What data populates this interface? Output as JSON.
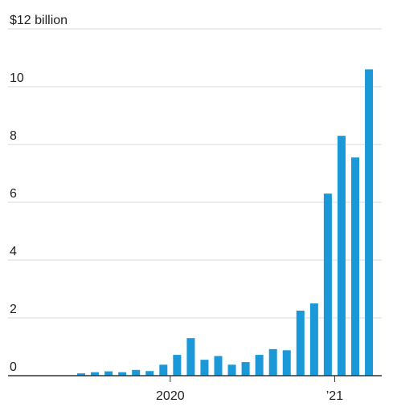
{
  "chart_data": {
    "type": "bar",
    "y_unit_label": "$12 billion",
    "ylim": [
      0,
      12
    ],
    "y_ticks": [
      {
        "value": 12,
        "label": "$12 billion"
      },
      {
        "value": 10,
        "label": "10"
      },
      {
        "value": 8,
        "label": "8"
      },
      {
        "value": 6,
        "label": "6"
      },
      {
        "value": 4,
        "label": "4"
      },
      {
        "value": 2,
        "label": "2"
      },
      {
        "value": 0,
        "label": "0"
      }
    ],
    "x_labels": [
      {
        "after_bar": 6,
        "label": "2020"
      },
      {
        "after_bar": 18,
        "label": "’21"
      }
    ],
    "values": [
      0.08,
      0.12,
      0.15,
      0.12,
      0.2,
      0.16,
      0.38,
      0.72,
      1.3,
      0.55,
      0.68,
      0.38,
      0.47,
      0.72,
      0.92,
      0.88,
      2.25,
      2.5,
      6.3,
      8.3,
      7.55,
      10.6
    ],
    "grid": true,
    "colors": {
      "bar": "#1a98d8",
      "grid": "#d9d9d9",
      "axis": "#333333",
      "text": "#222222"
    }
  }
}
